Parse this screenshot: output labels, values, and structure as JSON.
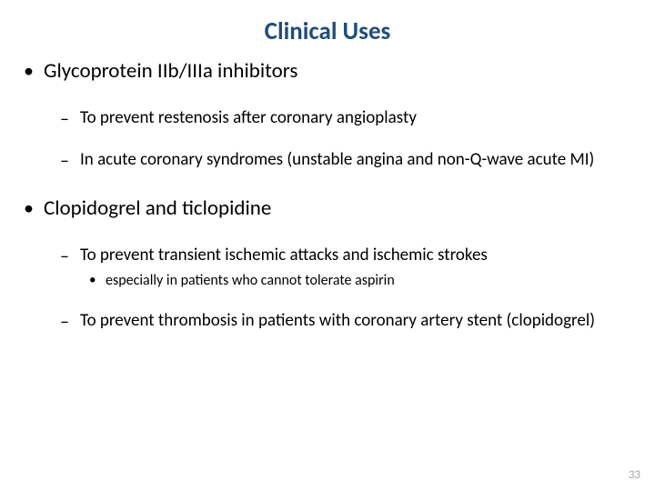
{
  "title": "Clinical Uses",
  "colors": {
    "title": "#1f4e79",
    "body": "#000000",
    "background": "#ffffff",
    "pagenum": "#a6a6a6"
  },
  "typography": {
    "title_fontsize": 27,
    "title_weight": "bold",
    "lvl1_fontsize": 23,
    "lvl2_fontsize": 19,
    "lvl3_fontsize": 16,
    "family": "Calibri"
  },
  "bullets": {
    "lvl1_marker": "•",
    "lvl2_marker": "–",
    "lvl3_marker": "•"
  },
  "items": [
    {
      "text": "Glycoprotein IIb/IIIa inhibitors",
      "sub": [
        {
          "text": "To prevent restenosis after coronary angioplasty"
        },
        {
          "text": "In acute coronary syndromes (unstable angina and non-Q-wave acute MI)"
        }
      ]
    },
    {
      "text": "Clopidogrel and ticlopidine",
      "sub": [
        {
          "text": "To prevent transient ischemic attacks and ischemic strokes",
          "sub": [
            {
              "text": "especially in patients who cannot tolerate aspirin"
            }
          ]
        },
        {
          "text": "To prevent thrombosis in patients with coronary artery stent (clopidogrel)"
        }
      ]
    }
  ],
  "page_number": "33"
}
